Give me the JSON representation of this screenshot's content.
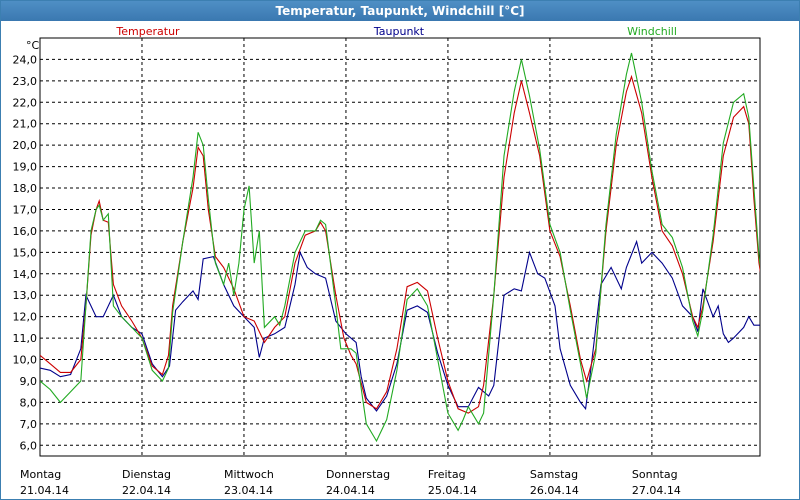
{
  "window": {
    "title": "Temperatur, Taupunkt, Windchill [°C]"
  },
  "chart_data": {
    "type": "line",
    "title": "Temperatur, Taupunkt, Windchill [°C]",
    "ylabel": "°C",
    "ylim": [
      5.5,
      25
    ],
    "yticks": [
      6,
      7,
      8,
      9,
      10,
      11,
      12,
      13,
      14,
      15,
      16,
      17,
      18,
      19,
      20,
      21,
      22,
      23,
      24
    ],
    "ytick_labels": [
      "6,0",
      "7,0",
      "8,0",
      "9,0",
      "10,0",
      "11,0",
      "12,0",
      "13,0",
      "14,0",
      "15,0",
      "16,0",
      "17,0",
      "18,0",
      "19,0",
      "20,0",
      "21,0",
      "22,0",
      "23,0",
      "24,0"
    ],
    "xlim": [
      0,
      7.06
    ],
    "xticks": [
      0,
      1,
      2,
      3,
      4,
      5,
      6
    ],
    "day_labels": [
      {
        "day": "Montag",
        "date": "21.04.14"
      },
      {
        "day": "Dienstag",
        "date": "22.04.14"
      },
      {
        "day": "Mittwoch",
        "date": "23.04.14"
      },
      {
        "day": "Donnerstag",
        "date": "24.04.14"
      },
      {
        "day": "Freitag",
        "date": "25.04.14"
      },
      {
        "day": "Samstag",
        "date": "26.04.14"
      },
      {
        "day": "Sonntag",
        "date": "27.04.14"
      }
    ],
    "grid": true,
    "legend_position": "top",
    "series": [
      {
        "name": "Temperatur",
        "color": "#cc0000",
        "points": [
          [
            0,
            10.2
          ],
          [
            0.1,
            9.8
          ],
          [
            0.2,
            9.4
          ],
          [
            0.3,
            9.4
          ],
          [
            0.4,
            10.0
          ],
          [
            0.45,
            12.5
          ],
          [
            0.5,
            15.8
          ],
          [
            0.55,
            17.0
          ],
          [
            0.58,
            17.4
          ],
          [
            0.62,
            16.5
          ],
          [
            0.67,
            16.4
          ],
          [
            0.72,
            13.5
          ],
          [
            0.8,
            12.5
          ],
          [
            0.9,
            11.8
          ],
          [
            1.0,
            11.0
          ],
          [
            1.1,
            9.7
          ],
          [
            1.2,
            9.3
          ],
          [
            1.26,
            10.2
          ],
          [
            1.3,
            12.5
          ],
          [
            1.4,
            15.5
          ],
          [
            1.5,
            18.0
          ],
          [
            1.55,
            19.9
          ],
          [
            1.6,
            19.5
          ],
          [
            1.65,
            17.0
          ],
          [
            1.72,
            14.8
          ],
          [
            1.8,
            14.3
          ],
          [
            1.9,
            13.3
          ],
          [
            2.0,
            12.0
          ],
          [
            2.1,
            11.8
          ],
          [
            2.2,
            10.8
          ],
          [
            2.3,
            11.5
          ],
          [
            2.4,
            12.0
          ],
          [
            2.5,
            14.5
          ],
          [
            2.6,
            15.8
          ],
          [
            2.7,
            16.0
          ],
          [
            2.75,
            16.4
          ],
          [
            2.8,
            16.0
          ],
          [
            2.9,
            13.0
          ],
          [
            2.98,
            11.0
          ],
          [
            3.05,
            10.2
          ],
          [
            3.1,
            9.8
          ],
          [
            3.2,
            8.0
          ],
          [
            3.3,
            7.7
          ],
          [
            3.4,
            8.5
          ],
          [
            3.5,
            10.5
          ],
          [
            3.6,
            13.4
          ],
          [
            3.7,
            13.6
          ],
          [
            3.8,
            13.2
          ],
          [
            3.9,
            11.0
          ],
          [
            4.0,
            9.0
          ],
          [
            4.1,
            7.7
          ],
          [
            4.2,
            7.5
          ],
          [
            4.3,
            7.8
          ],
          [
            4.35,
            8.8
          ],
          [
            4.45,
            13.0
          ],
          [
            4.55,
            18.5
          ],
          [
            4.65,
            21.5
          ],
          [
            4.72,
            23.0
          ],
          [
            4.8,
            21.5
          ],
          [
            4.9,
            19.5
          ],
          [
            5.0,
            16.0
          ],
          [
            5.1,
            14.8
          ],
          [
            5.2,
            12.5
          ],
          [
            5.3,
            10.0
          ],
          [
            5.36,
            9.0
          ],
          [
            5.45,
            10.5
          ],
          [
            5.55,
            16.0
          ],
          [
            5.65,
            20.0
          ],
          [
            5.75,
            22.5
          ],
          [
            5.8,
            23.2
          ],
          [
            5.9,
            21.5
          ],
          [
            6.0,
            18.5
          ],
          [
            6.1,
            16.0
          ],
          [
            6.2,
            15.3
          ],
          [
            6.3,
            14.0
          ],
          [
            6.4,
            12.0
          ],
          [
            6.45,
            11.5
          ],
          [
            6.5,
            12.5
          ],
          [
            6.6,
            15.5
          ],
          [
            6.7,
            19.5
          ],
          [
            6.8,
            21.3
          ],
          [
            6.9,
            21.8
          ],
          [
            6.95,
            21.0
          ],
          [
            7.0,
            17.5
          ],
          [
            7.05,
            14.5
          ],
          [
            7.1,
            13.0
          ],
          [
            7.16,
            12.2
          ]
        ]
      },
      {
        "name": "Taupunkt",
        "color": "#00008b",
        "points": [
          [
            0,
            9.6
          ],
          [
            0.1,
            9.5
          ],
          [
            0.2,
            9.2
          ],
          [
            0.3,
            9.3
          ],
          [
            0.4,
            10.5
          ],
          [
            0.45,
            13.0
          ],
          [
            0.55,
            12.0
          ],
          [
            0.62,
            12.0
          ],
          [
            0.72,
            13.0
          ],
          [
            0.8,
            12.0
          ],
          [
            0.9,
            11.5
          ],
          [
            1.0,
            11.2
          ],
          [
            1.05,
            10.5
          ],
          [
            1.1,
            9.8
          ],
          [
            1.2,
            9.2
          ],
          [
            1.27,
            9.7
          ],
          [
            1.33,
            12.3
          ],
          [
            1.4,
            12.7
          ],
          [
            1.5,
            13.2
          ],
          [
            1.55,
            12.8
          ],
          [
            1.6,
            14.7
          ],
          [
            1.7,
            14.8
          ],
          [
            1.8,
            13.5
          ],
          [
            1.9,
            12.5
          ],
          [
            2.0,
            12.0
          ],
          [
            2.1,
            11.5
          ],
          [
            2.15,
            10.1
          ],
          [
            2.2,
            11.0
          ],
          [
            2.3,
            11.2
          ],
          [
            2.4,
            11.5
          ],
          [
            2.5,
            13.5
          ],
          [
            2.55,
            15.0
          ],
          [
            2.62,
            14.3
          ],
          [
            2.7,
            14.0
          ],
          [
            2.8,
            13.8
          ],
          [
            2.9,
            11.8
          ],
          [
            3.0,
            11.2
          ],
          [
            3.1,
            10.8
          ],
          [
            3.15,
            9.2
          ],
          [
            3.2,
            8.2
          ],
          [
            3.3,
            7.6
          ],
          [
            3.4,
            8.3
          ],
          [
            3.5,
            9.8
          ],
          [
            3.6,
            12.3
          ],
          [
            3.7,
            12.5
          ],
          [
            3.8,
            12.2
          ],
          [
            3.9,
            10.3
          ],
          [
            4.0,
            8.8
          ],
          [
            4.1,
            7.8
          ],
          [
            4.2,
            7.8
          ],
          [
            4.3,
            8.7
          ],
          [
            4.4,
            8.3
          ],
          [
            4.45,
            8.8
          ],
          [
            4.55,
            13.0
          ],
          [
            4.65,
            13.3
          ],
          [
            4.72,
            13.2
          ],
          [
            4.8,
            15.0
          ],
          [
            4.88,
            14.0
          ],
          [
            4.95,
            13.8
          ],
          [
            5.05,
            12.5
          ],
          [
            5.1,
            10.5
          ],
          [
            5.2,
            8.8
          ],
          [
            5.3,
            8.0
          ],
          [
            5.35,
            7.7
          ],
          [
            5.4,
            9.5
          ],
          [
            5.5,
            13.5
          ],
          [
            5.6,
            14.3
          ],
          [
            5.7,
            13.3
          ],
          [
            5.75,
            14.3
          ],
          [
            5.85,
            15.5
          ],
          [
            5.9,
            14.5
          ],
          [
            6.0,
            15.0
          ],
          [
            6.1,
            14.5
          ],
          [
            6.2,
            13.8
          ],
          [
            6.3,
            12.5
          ],
          [
            6.4,
            12.0
          ],
          [
            6.45,
            11.3
          ],
          [
            6.5,
            13.3
          ],
          [
            6.6,
            12.0
          ],
          [
            6.65,
            12.5
          ],
          [
            6.7,
            11.2
          ],
          [
            6.75,
            10.8
          ],
          [
            6.8,
            11.0
          ],
          [
            6.9,
            11.5
          ],
          [
            6.95,
            12.0
          ],
          [
            7.0,
            11.6
          ],
          [
            7.08,
            11.6
          ],
          [
            7.16,
            11.3
          ]
        ]
      },
      {
        "name": "Windchill",
        "color": "#22aa22",
        "points": [
          [
            0,
            9.0
          ],
          [
            0.1,
            8.6
          ],
          [
            0.2,
            8.0
          ],
          [
            0.3,
            8.5
          ],
          [
            0.4,
            9.0
          ],
          [
            0.45,
            12.5
          ],
          [
            0.5,
            16.0
          ],
          [
            0.55,
            17.0
          ],
          [
            0.58,
            17.2
          ],
          [
            0.62,
            16.5
          ],
          [
            0.67,
            16.8
          ],
          [
            0.72,
            12.5
          ],
          [
            0.8,
            12.0
          ],
          [
            0.9,
            11.5
          ],
          [
            1.0,
            11.0
          ],
          [
            1.1,
            9.5
          ],
          [
            1.2,
            9.0
          ],
          [
            1.26,
            9.6
          ],
          [
            1.3,
            12.2
          ],
          [
            1.4,
            15.5
          ],
          [
            1.5,
            18.5
          ],
          [
            1.55,
            20.6
          ],
          [
            1.6,
            20.0
          ],
          [
            1.65,
            17.5
          ],
          [
            1.72,
            14.5
          ],
          [
            1.8,
            13.5
          ],
          [
            1.85,
            14.5
          ],
          [
            1.9,
            13.0
          ],
          [
            1.95,
            14.5
          ],
          [
            2.0,
            17.0
          ],
          [
            2.05,
            18.1
          ],
          [
            2.1,
            14.5
          ],
          [
            2.15,
            16.0
          ],
          [
            2.2,
            11.5
          ],
          [
            2.3,
            12.0
          ],
          [
            2.35,
            11.6
          ],
          [
            2.4,
            12.5
          ],
          [
            2.5,
            15.0
          ],
          [
            2.6,
            16.0
          ],
          [
            2.7,
            16.0
          ],
          [
            2.75,
            16.5
          ],
          [
            2.8,
            16.3
          ],
          [
            2.9,
            12.5
          ],
          [
            2.95,
            10.5
          ],
          [
            3.05,
            10.5
          ],
          [
            3.1,
            10.3
          ],
          [
            3.2,
            7.0
          ],
          [
            3.3,
            6.2
          ],
          [
            3.4,
            7.2
          ],
          [
            3.5,
            9.5
          ],
          [
            3.6,
            12.8
          ],
          [
            3.7,
            13.3
          ],
          [
            3.8,
            12.5
          ],
          [
            3.9,
            10.0
          ],
          [
            4.0,
            7.5
          ],
          [
            4.1,
            6.7
          ],
          [
            4.15,
            7.2
          ],
          [
            4.2,
            7.8
          ],
          [
            4.3,
            7.0
          ],
          [
            4.35,
            7.5
          ],
          [
            4.45,
            13.0
          ],
          [
            4.55,
            19.5
          ],
          [
            4.65,
            22.5
          ],
          [
            4.72,
            24.0
          ],
          [
            4.8,
            22.3
          ],
          [
            4.9,
            19.8
          ],
          [
            5.0,
            16.3
          ],
          [
            5.1,
            15.0
          ],
          [
            5.2,
            12.3
          ],
          [
            5.3,
            9.8
          ],
          [
            5.36,
            8.2
          ],
          [
            5.45,
            10.3
          ],
          [
            5.55,
            16.3
          ],
          [
            5.65,
            20.5
          ],
          [
            5.75,
            23.3
          ],
          [
            5.8,
            24.3
          ],
          [
            5.9,
            22.0
          ],
          [
            6.0,
            18.8
          ],
          [
            6.1,
            16.3
          ],
          [
            6.2,
            15.7
          ],
          [
            6.3,
            14.3
          ],
          [
            6.4,
            11.8
          ],
          [
            6.45,
            11.1
          ],
          [
            6.5,
            12.3
          ],
          [
            6.6,
            15.8
          ],
          [
            6.7,
            20.1
          ],
          [
            6.8,
            22.0
          ],
          [
            6.9,
            22.4
          ],
          [
            6.95,
            21.3
          ],
          [
            7.0,
            18.0
          ],
          [
            7.05,
            14.8
          ],
          [
            7.1,
            13.1
          ],
          [
            7.16,
            12.1
          ]
        ]
      }
    ]
  }
}
